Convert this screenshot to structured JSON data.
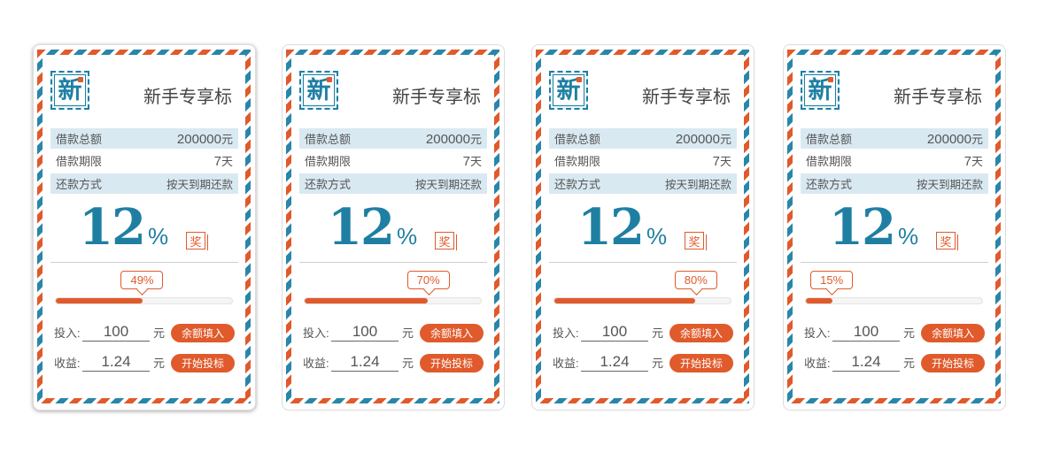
{
  "cards": [
    {
      "title": "新手专享标",
      "stamp_char": "新",
      "amount_label": "借款总额",
      "amount_value": "200000",
      "amount_unit": "元",
      "term_label": "借款期限",
      "term_value": "7",
      "term_unit": "天",
      "repay_label": "还款方式",
      "repay_value": "按天到期还款",
      "rate": "12",
      "rate_unit": "%",
      "reward_badge": "奖",
      "progress_text": "49%",
      "progress": 49,
      "invest_label": "投入:",
      "invest_value": "100",
      "invest_unit": "元",
      "fill_button": "余额填入",
      "income_label": "收益:",
      "income_value": "1.24",
      "income_unit": "元",
      "bid_button": "开始投标"
    },
    {
      "title": "新手专享标",
      "stamp_char": "新",
      "amount_label": "借款总额",
      "amount_value": "200000",
      "amount_unit": "元",
      "term_label": "借款期限",
      "term_value": "7",
      "term_unit": "天",
      "repay_label": "还款方式",
      "repay_value": "按天到期还款",
      "rate": "12",
      "rate_unit": "%",
      "reward_badge": "奖",
      "progress_text": "70%",
      "progress": 70,
      "invest_label": "投入:",
      "invest_value": "100",
      "invest_unit": "元",
      "fill_button": "余额填入",
      "income_label": "收益:",
      "income_value": "1.24",
      "income_unit": "元",
      "bid_button": "开始投标"
    },
    {
      "title": "新手专享标",
      "stamp_char": "新",
      "amount_label": "借款总额",
      "amount_value": "200000",
      "amount_unit": "元",
      "term_label": "借款期限",
      "term_value": "7",
      "term_unit": "天",
      "repay_label": "还款方式",
      "repay_value": "按天到期还款",
      "rate": "12",
      "rate_unit": "%",
      "reward_badge": "奖",
      "progress_text": "80%",
      "progress": 80,
      "invest_label": "投入:",
      "invest_value": "100",
      "invest_unit": "元",
      "fill_button": "余额填入",
      "income_label": "收益:",
      "income_value": "1.24",
      "income_unit": "元",
      "bid_button": "开始投标"
    },
    {
      "title": "新手专享标",
      "stamp_char": "新",
      "amount_label": "借款总额",
      "amount_value": "200000",
      "amount_unit": "元",
      "term_label": "借款期限",
      "term_value": "7",
      "term_unit": "天",
      "repay_label": "还款方式",
      "repay_value": "按天到期还款",
      "rate": "12",
      "rate_unit": "%",
      "reward_badge": "奖",
      "progress_text": "15%",
      "progress": 15,
      "invest_label": "投入:",
      "invest_value": "100",
      "invest_unit": "元",
      "fill_button": "余额填入",
      "income_label": "收益:",
      "income_value": "1.24",
      "income_unit": "元",
      "bid_button": "开始投标"
    }
  ],
  "colors": {
    "accent": "#e05a2b",
    "brand_blue": "#1f7fa3",
    "row_bg": "#d9e9f2"
  },
  "icons": {
    "stamp": "new-stamp-icon",
    "reward": "reward-badge-icon"
  }
}
